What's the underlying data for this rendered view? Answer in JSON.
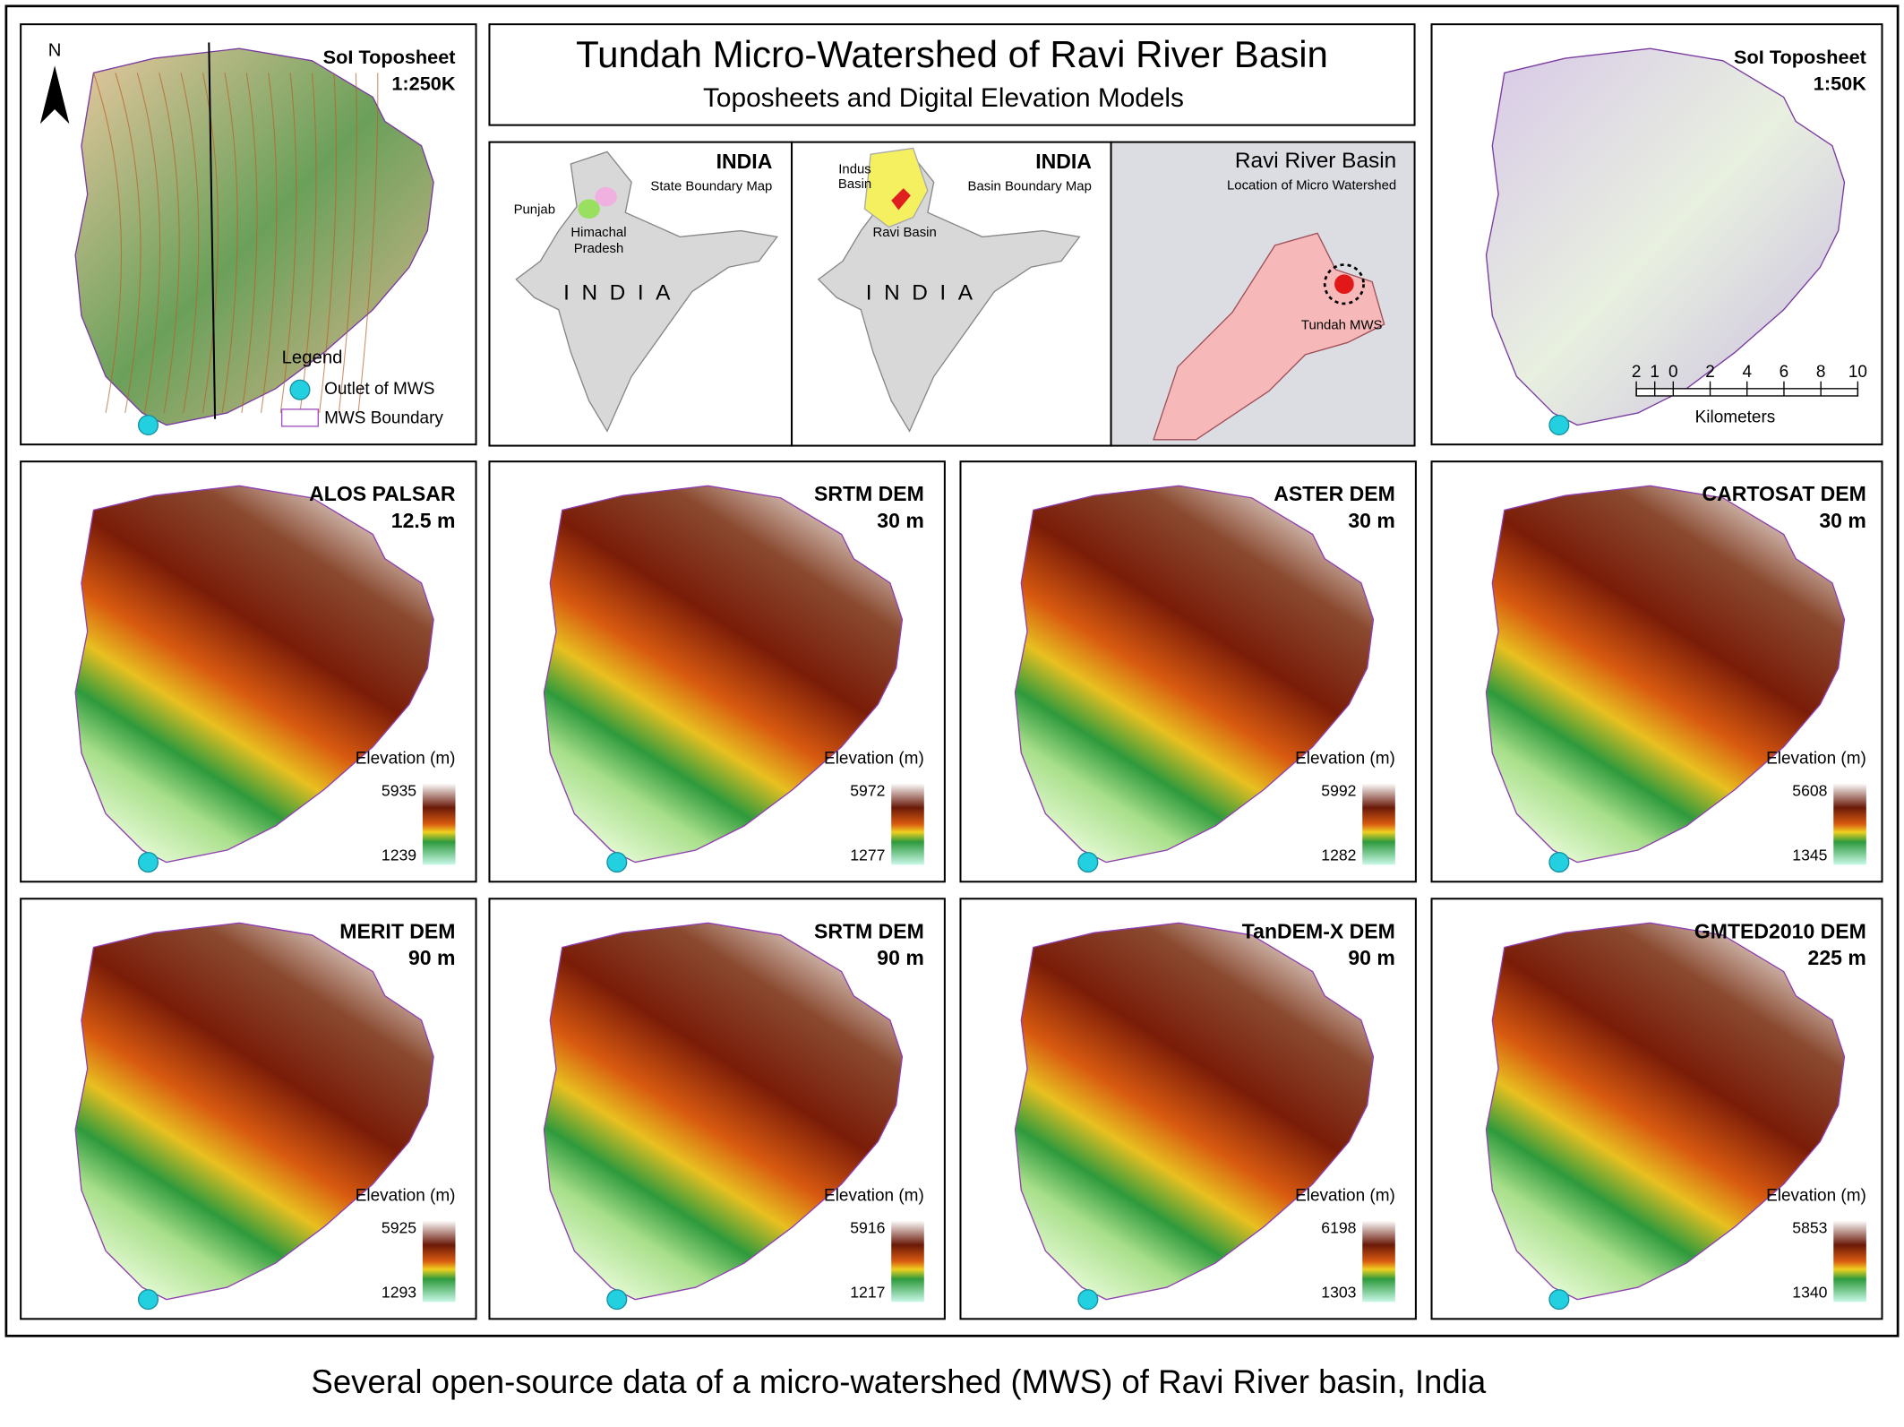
{
  "title": "Tundah Micro-Watershed of Ravi River Basin",
  "subtitle": "Toposheets and Digital Elevation Models",
  "toposheet_250k": {
    "title": "SoI Toposheet",
    "scale": "1:250K",
    "north": "N",
    "legend_title": "Legend",
    "legend": [
      "Outlet of MWS",
      "MWS Boundary"
    ]
  },
  "india_state": {
    "title": "INDIA",
    "subtitle": "State Boundary Map",
    "country": "INDIA",
    "punjab": "Punjab",
    "himachal": [
      "Himachal",
      "Pradesh"
    ]
  },
  "india_basin": {
    "title": "INDIA",
    "subtitle": "Basin Boundary Map",
    "country": "INDIA",
    "indus": [
      "Indus",
      "Basin"
    ],
    "ravi": "Ravi Basin"
  },
  "ravi_basin": {
    "title": "Ravi River Basin",
    "subtitle": "Location of Micro Watershed",
    "label": "Tundah MWS"
  },
  "toposheet_50k": {
    "title": "SoI Toposheet",
    "scale": "1:50K",
    "scalebar_ticks": [
      2,
      1,
      0,
      2,
      4,
      6,
      8,
      10
    ],
    "scalebar_unit": "Kilometers"
  },
  "legend_label": "Elevation (m)",
  "dems": [
    {
      "name": "ALOS PALSAR",
      "resolution": "12.5 m",
      "max": 5935,
      "min": 1239
    },
    {
      "name": "SRTM DEM",
      "resolution": "30 m",
      "max": 5972,
      "min": 1277
    },
    {
      "name": "ASTER DEM",
      "resolution": "30 m",
      "max": 5992,
      "min": 1282
    },
    {
      "name": "CARTOSAT DEM",
      "resolution": "30 m",
      "max": 5608,
      "min": 1345
    },
    {
      "name": "MERIT DEM",
      "resolution": "90 m",
      "max": 5925,
      "min": 1293
    },
    {
      "name": "SRTM DEM",
      "resolution": "90 m",
      "max": 5916,
      "min": 1217
    },
    {
      "name": "TanDEM-X DEM",
      "resolution": "90 m",
      "max": 6198,
      "min": 1303
    },
    {
      "name": "GMTED2010 DEM",
      "resolution": "225 m",
      "max": 5853,
      "min": 1340
    }
  ],
  "caption": "Several open-source data of a micro-watershed (MWS) of Ravi River basin, India"
}
